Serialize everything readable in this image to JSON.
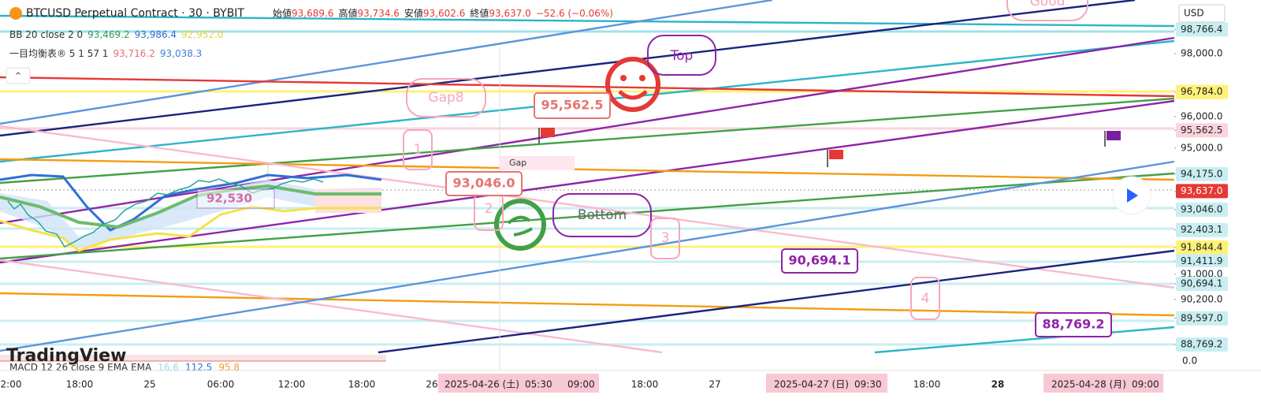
{
  "header": {
    "symbol": "BTCUSD Perpetual Contract · 30 · BYBIT",
    "ohlc": [
      {
        "label": "始値",
        "value": "93,689.6"
      },
      {
        "label": "高値",
        "value": "93,734.6"
      },
      {
        "label": "安値",
        "value": "93,602.6"
      },
      {
        "label": "終値",
        "value": "93,637.0"
      }
    ],
    "change": "−52.6 (−0.06%)"
  },
  "indicators": [
    {
      "name": "BB 20 close 2 0",
      "values": [
        {
          "text": "93,469.2",
          "color": "#2e9e55"
        },
        {
          "text": "93,986.4",
          "color": "#2f6fd6"
        },
        {
          "text": "92,952.0",
          "color": "#e8d23a"
        }
      ]
    },
    {
      "name": "一目均衡表® 5 1 57 1",
      "values": [
        {
          "text": "93,716.2",
          "color": "#e0706a"
        },
        {
          "text": "93,038.3",
          "color": "#3f7fd0"
        }
      ]
    }
  ],
  "currency": "USD",
  "price_axis": [
    {
      "value": 98766.4,
      "label": "98,766.4",
      "bg": "#c9eef2",
      "fg": "#222"
    },
    {
      "value": 98000,
      "label": "98,000.0",
      "bg": "#ffffff",
      "fg": "#222"
    },
    {
      "value": 96784,
      "label": "96,784.0",
      "bg": "#fff176",
      "fg": "#222"
    },
    {
      "value": 96000,
      "label": "96,000.0",
      "bg": "#ffffff",
      "fg": "#222"
    },
    {
      "value": 95562.5,
      "label": "95,562.5",
      "bg": "#fbd3dc",
      "fg": "#222"
    },
    {
      "value": 95000,
      "label": "95,000.0",
      "bg": "#ffffff",
      "fg": "#222"
    },
    {
      "value": 94175,
      "label": "94,175.0",
      "bg": "#c9eef2",
      "fg": "#222"
    },
    {
      "value": 93637,
      "label": "93,637.0",
      "bg": "#e53935",
      "fg": "#ffffff"
    },
    {
      "value": 93046,
      "label": "93,046.0",
      "bg": "#c9eef2",
      "fg": "#222"
    },
    {
      "value": 92403.1,
      "label": "92,403.1",
      "bg": "#c9eef2",
      "fg": "#222"
    },
    {
      "value": 91844.4,
      "label": "91,844.4",
      "bg": "#fff176",
      "fg": "#222"
    },
    {
      "value": 91411.9,
      "label": "91,411.9",
      "bg": "#c9eef2",
      "fg": "#222"
    },
    {
      "value": 91000,
      "label": "91,000.0",
      "bg": "#ffffff",
      "fg": "#222"
    },
    {
      "value": 90694.1,
      "label": "90,694.1",
      "bg": "#c9eef2",
      "fg": "#222"
    },
    {
      "value": 90200,
      "label": "90,200.0",
      "bg": "#ffffff",
      "fg": "#222"
    },
    {
      "value": 89597,
      "label": "89,597.0",
      "bg": "#c9eef2",
      "fg": "#222"
    },
    {
      "value": 88769.2,
      "label": "88,769.2",
      "bg": "#c9eef2",
      "fg": "#222"
    }
  ],
  "macd": {
    "name": "MACD 12 26 close 9 EMA EMA",
    "values": [
      {
        "text": "16.6",
        "color": "#9fd4e6"
      },
      {
        "text": "112.5",
        "color": "#2f6fd6"
      },
      {
        "text": "95.8",
        "color": "#f09a3a"
      }
    ],
    "zero": "0.0"
  },
  "watermark": "TradingView",
  "annotations": {
    "gap8": "Gap8",
    "top": "Top",
    "bottom": "Bottom",
    "good": "Good",
    "gap": "Gap",
    "numbers": [
      "1",
      "2",
      "3",
      "4"
    ],
    "price_callouts": [
      "95,562.5",
      "93,046.0",
      "90,694.1",
      "88,769.2"
    ],
    "chart_label": "92,530"
  },
  "time_axis": [
    "2:00",
    "18:00",
    "25",
    "06:00",
    "12:00",
    "18:00",
    "26",
    "18:00",
    "27",
    "18:00",
    "28"
  ],
  "time_highlights": [
    {
      "date": "2025-04-26 (土)",
      "times": [
        "05:30",
        "09:00"
      ]
    },
    {
      "date": "2025-04-27 (日)",
      "times": [
        "09:30"
      ]
    },
    {
      "date": "2025-04-28 (月)",
      "times": [
        "09:00"
      ]
    }
  ]
}
